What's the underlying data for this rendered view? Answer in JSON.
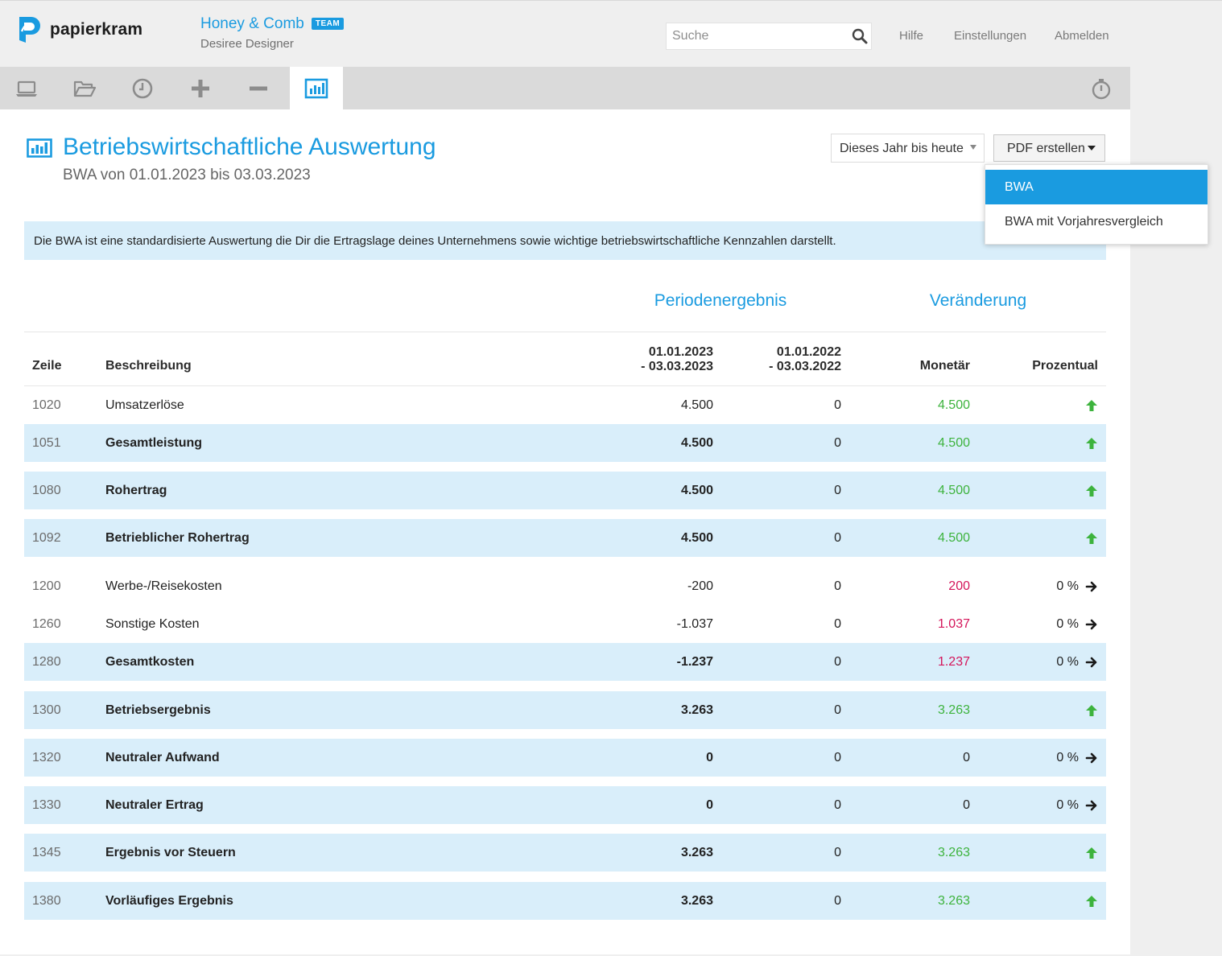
{
  "header": {
    "brand": "papierkram",
    "company": "Honey & Comb",
    "team_badge": "TEAM",
    "user": "Desiree Designer",
    "search_placeholder": "Suche",
    "links": {
      "help": "Hilfe",
      "settings": "Einstellungen",
      "logout": "Abmelden"
    }
  },
  "toolbar": {
    "items": [
      "laptop-icon",
      "folder-open-icon",
      "clock-icon",
      "plus-icon",
      "minus-icon",
      "bar-chart-icon"
    ],
    "active": "bar-chart-icon",
    "timer": "stopwatch-icon"
  },
  "page": {
    "title": "Betriebswirtschaftliche Auswertung",
    "subtitle": "BWA von 01.01.2023 bis 03.03.2023",
    "period_select": "Dieses Jahr bis heute",
    "pdf_button": "PDF erstellen",
    "pdf_menu": [
      "BWA",
      "BWA mit Vorjahresvergleich"
    ],
    "pdf_menu_selected": "BWA",
    "info": "Die BWA ist eine standardisierte Auswertung die Dir die Ertragslage deines Unternehmens sowie wichtige betriebswirtschaftliche Kennzahlen darstellt."
  },
  "table": {
    "group_headers": {
      "period": "Periodenergebnis",
      "change": "Veränderung"
    },
    "columns": {
      "zeile": "Zeile",
      "desc": "Beschreibung",
      "cur_l1": "01.01.2023",
      "cur_l2": "- 03.03.2023",
      "prev_l1": "01.01.2022",
      "prev_l2": "- 03.03.2022",
      "monetary": "Monetär",
      "percent": "Prozentual"
    },
    "rows": [
      {
        "zeile": "1020",
        "desc": "Umsatzerlöse",
        "cur": "4.500",
        "prev": "0",
        "mon": "4.500",
        "mon_color": "pos",
        "pct": "",
        "arrow": "up"
      },
      {
        "zeile": "1051",
        "desc": "Gesamtleistung",
        "cur": "4.500",
        "prev": "0",
        "mon": "4.500",
        "mon_color": "pos",
        "pct": "",
        "arrow": "up"
      },
      {
        "zeile": "1080",
        "desc": "Rohertrag",
        "cur": "4.500",
        "prev": "0",
        "mon": "4.500",
        "mon_color": "pos",
        "pct": "",
        "arrow": "up"
      },
      {
        "zeile": "1092",
        "desc": "Betrieblicher Rohertrag",
        "cur": "4.500",
        "prev": "0",
        "mon": "4.500",
        "mon_color": "pos",
        "pct": "",
        "arrow": "up"
      },
      {
        "zeile": "1200",
        "desc": "Werbe-/Reisekosten",
        "cur": "-200",
        "prev": "0",
        "mon": "200",
        "mon_color": "neg",
        "pct": "0 %",
        "arrow": "right"
      },
      {
        "zeile": "1260",
        "desc": "Sonstige Kosten",
        "cur": "-1.037",
        "prev": "0",
        "mon": "1.037",
        "mon_color": "neg",
        "pct": "0 %",
        "arrow": "right"
      },
      {
        "zeile": "1280",
        "desc": "Gesamtkosten",
        "cur": "-1.237",
        "prev": "0",
        "mon": "1.237",
        "mon_color": "neg",
        "pct": "0 %",
        "arrow": "right"
      },
      {
        "zeile": "1300",
        "desc": "Betriebsergebnis",
        "cur": "3.263",
        "prev": "0",
        "mon": "3.263",
        "mon_color": "pos",
        "pct": "",
        "arrow": "up"
      },
      {
        "zeile": "1320",
        "desc": "Neutraler Aufwand",
        "cur": "0",
        "prev": "0",
        "mon": "0",
        "mon_color": "zero",
        "pct": "0 %",
        "arrow": "right"
      },
      {
        "zeile": "1330",
        "desc": "Neutraler Ertrag",
        "cur": "0",
        "prev": "0",
        "mon": "0",
        "mon_color": "zero",
        "pct": "0 %",
        "arrow": "right"
      },
      {
        "zeile": "1345",
        "desc": "Ergebnis vor Steuern",
        "cur": "3.263",
        "prev": "0",
        "mon": "3.263",
        "mon_color": "pos",
        "pct": "",
        "arrow": "up"
      },
      {
        "zeile": "1380",
        "desc": "Vorläufiges Ergebnis",
        "cur": "3.263",
        "prev": "0",
        "mon": "3.263",
        "mon_color": "pos",
        "pct": "",
        "arrow": "up"
      }
    ]
  },
  "colors": {
    "accent": "#1a9be0",
    "positive": "#3db33d",
    "negative": "#d4155a",
    "highlight": "#d9eefa"
  }
}
